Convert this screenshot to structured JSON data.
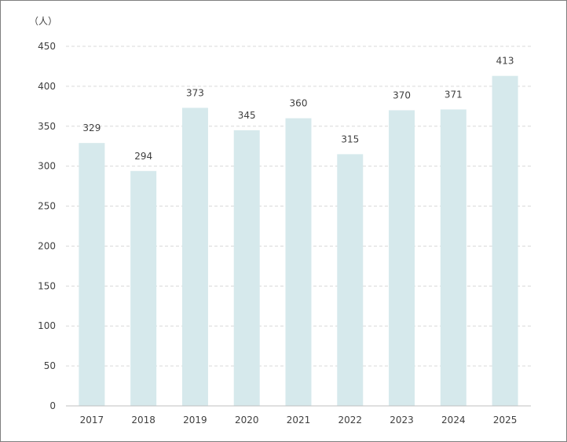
{
  "chart_data": {
    "type": "bar",
    "ylabel": "（人）",
    "categories": [
      "2017",
      "2018",
      "2019",
      "2020",
      "2021",
      "2022",
      "2023",
      "2024",
      "2025"
    ],
    "values": [
      329,
      294,
      373,
      345,
      360,
      315,
      370,
      371,
      413
    ],
    "data_labels": [
      "329",
      "294",
      "373",
      "345",
      "360",
      "315",
      "370",
      "371",
      "413"
    ],
    "ylim": [
      0,
      450
    ],
    "yticks": [
      "0",
      "50",
      "100",
      "150",
      "200",
      "250",
      "300",
      "350",
      "400",
      "450"
    ],
    "grid": true,
    "legend": "none",
    "bar_color": "#d6e9ec"
  }
}
